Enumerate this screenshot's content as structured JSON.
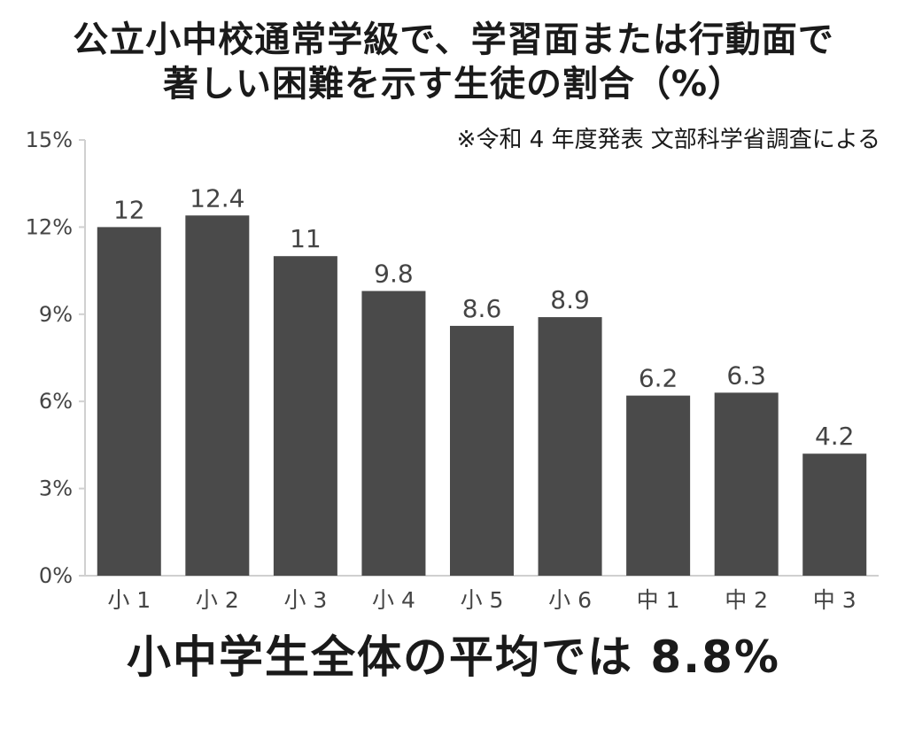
{
  "title_lines": [
    "公立小中校通常学級で、学習面または行動面で",
    "著しい困難を示す生徒の割合（%）"
  ],
  "note": "※令和 4 年度発表 文部科学省調査による",
  "summary": "小中学生全体の平均では 8.8%",
  "colors": {
    "bar": "#4a4a4a",
    "axis": "#d0d0d0",
    "label_text": "#444444",
    "title_text": "#1a1a1a"
  },
  "chart_data": {
    "type": "bar",
    "title": "公立小中校通常学級で、学習面または行動面で著しい困難を示す生徒の割合（%）",
    "categories": [
      "小 1",
      "小 2",
      "小 3",
      "小 4",
      "小 5",
      "小 6",
      "中 1",
      "中 2",
      "中 3"
    ],
    "values": [
      12,
      12.4,
      11,
      9.8,
      8.6,
      8.9,
      6.2,
      6.3,
      4.2
    ],
    "value_labels": [
      "12",
      "12.4",
      "11",
      "9.8",
      "8.6",
      "8.9",
      "6.2",
      "6.3",
      "4.2"
    ],
    "yticks": [
      0,
      3,
      6,
      9,
      12,
      15
    ],
    "ytick_labels": [
      "0%",
      "3%",
      "6%",
      "9%",
      "12%",
      "15%"
    ],
    "ylim": [
      0,
      15
    ],
    "xlabel": "",
    "ylabel": "",
    "grid": false,
    "legend": false
  }
}
